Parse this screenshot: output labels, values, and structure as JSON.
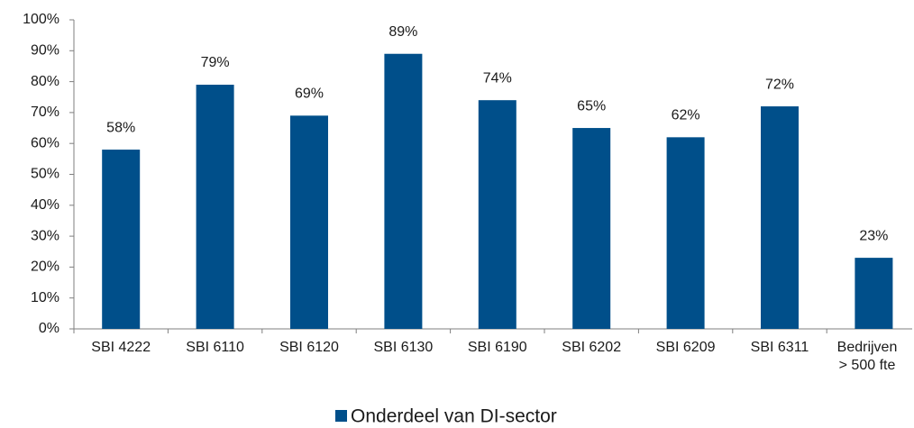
{
  "chart_data": {
    "type": "bar",
    "categories": [
      "SBI 4222",
      "SBI 6110",
      "SBI 6120",
      "SBI 6130",
      "SBI 6190",
      "SBI 6202",
      "SBI 6209",
      "SBI 6311",
      "Bedrijven\n> 500 fte"
    ],
    "series": [
      {
        "name": "Onderdeel van DI-sector",
        "color": "#004f8a",
        "values": [
          58,
          79,
          69,
          89,
          74,
          65,
          62,
          72,
          23
        ],
        "value_labels": [
          "58%",
          "79%",
          "69%",
          "89%",
          "74%",
          "65%",
          "62%",
          "72%",
          "23%"
        ]
      }
    ],
    "ylim": [
      0,
      100
    ],
    "yticks": [
      {
        "value": 0,
        "label": "0%"
      },
      {
        "value": 10,
        "label": "10%"
      },
      {
        "value": 20,
        "label": "20%"
      },
      {
        "value": 30,
        "label": "30%"
      },
      {
        "value": 40,
        "label": "40%"
      },
      {
        "value": 50,
        "label": "50%"
      },
      {
        "value": 60,
        "label": "60%"
      },
      {
        "value": 70,
        "label": "70%"
      },
      {
        "value": 80,
        "label": "80%"
      },
      {
        "value": 90,
        "label": "90%"
      },
      {
        "value": 100,
        "label": "100%"
      }
    ],
    "legend": "bottom"
  }
}
